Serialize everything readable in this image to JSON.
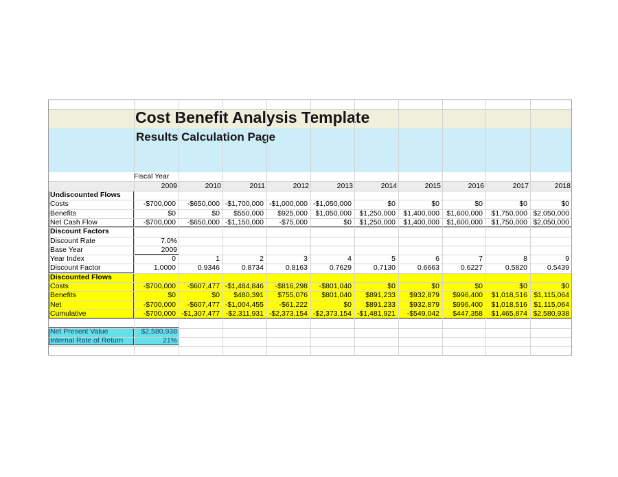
{
  "title": "Cost Benefit Analysis Template",
  "subtitle": "Results Calculation Page",
  "fiscal_year_label": "Fiscal Year",
  "years": [
    "2009",
    "2010",
    "2011",
    "2012",
    "2013",
    "2014",
    "2015",
    "2016",
    "2017",
    "2018"
  ],
  "undiscounted": {
    "header": "Undiscounted Flows",
    "rows": [
      {
        "label": "Costs",
        "values": [
          "-$700,000",
          "-$650,000",
          "-$1,700,000",
          "-$1,000,000",
          "-$1,050,000",
          "$0",
          "$0",
          "$0",
          "$0",
          "$0"
        ]
      },
      {
        "label": "Benefits",
        "values": [
          "$0",
          "$0",
          "$550,000",
          "$925,000",
          "$1,050,000",
          "$1,250,000",
          "$1,400,000",
          "$1,600,000",
          "$1,750,000",
          "$2,050,000"
        ]
      },
      {
        "label": "Net Cash Flow",
        "values": [
          "-$700,000",
          "-$650,000",
          "-$1,150,000",
          "-$75,000",
          "$0",
          "$1,250,000",
          "$1,400,000",
          "$1,600,000",
          "$1,750,000",
          "$2,050,000"
        ]
      }
    ]
  },
  "factors": {
    "header": "Discount Factors",
    "discount_rate_label": "Discount Rate",
    "discount_rate": "7.0%",
    "base_year_label": "Base Year",
    "base_year": "2009",
    "year_index_label": "Year Index",
    "year_index": [
      "0",
      "1",
      "2",
      "3",
      "4",
      "5",
      "6",
      "7",
      "8",
      "9"
    ],
    "discount_factor_label": "Discount Factor",
    "discount_factor": [
      "1.0000",
      "0.9346",
      "0.8734",
      "0.8163",
      "0.7629",
      "0.7130",
      "0.6663",
      "0.6227",
      "0.5820",
      "0.5439"
    ]
  },
  "discounted": {
    "header": "Discounted Flows",
    "rows": [
      {
        "label": "Costs",
        "values": [
          "-$700,000",
          "-$607,477",
          "-$1,484,846",
          "-$816,298",
          "-$801,040",
          "$0",
          "$0",
          "$0",
          "$0",
          "$0"
        ]
      },
      {
        "label": "Benefits",
        "values": [
          "$0",
          "$0",
          "$480,391",
          "$755,076",
          "$801,040",
          "$891,233",
          "$932,879",
          "$996,400",
          "$1,018,516",
          "$1,115,064"
        ]
      },
      {
        "label": "Net",
        "values": [
          "-$700,000",
          "-$607,477",
          "-$1,004,455",
          "-$61,222",
          "$0",
          "$891,233",
          "$932,879",
          "$996,400",
          "$1,018,516",
          "$1,115,064"
        ]
      },
      {
        "label": "Cumulative",
        "values": [
          "-$700,000",
          "-$1,307,477",
          "-$2,311,931",
          "-$2,373,154",
          "-$2,373,154",
          "-$1,481,921",
          "-$549,042",
          "$447,358",
          "$1,465,874",
          "$2,580,938"
        ]
      }
    ]
  },
  "summary": {
    "npv_label": "Net Present Value",
    "npv": "$2,580,938",
    "irr_label": "Internal Rate of Return",
    "irr": "21%"
  },
  "colors": {
    "yellow": "#ffff00",
    "cyan": "#66e0e8",
    "cream": "#efefdc",
    "light_cyan": "#cdeef8"
  }
}
